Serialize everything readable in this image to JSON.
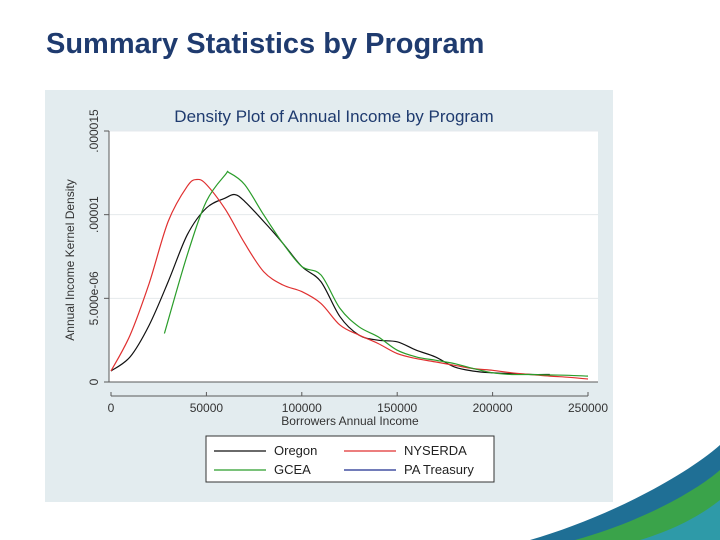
{
  "slide": {
    "title": "Summary Statistics by Program"
  },
  "colors": {
    "title": "#1f3b6f",
    "panel_bg": "#e3ecef",
    "plot_bg": "#ffffff",
    "grid": "#e4e9ec",
    "axis": "#5a5a5a",
    "chart_title": "#1f3b6f",
    "decor_dark": "#1f6f95",
    "decor_green": "#3aa34a",
    "decor_teal": "#2e9aa8"
  },
  "chart_data": {
    "type": "line",
    "title": "Density Plot of Annual Income by Program",
    "xlabel": "Borrowers Annual Income",
    "ylabel": "Annual Income Kernel Density",
    "xlim": [
      0,
      250000
    ],
    "ylim": [
      0,
      1.5e-05
    ],
    "x_ticks": [
      0,
      50000,
      100000,
      150000,
      200000,
      250000
    ],
    "x_tick_labels": [
      "0",
      "50000",
      "100000",
      "150000",
      "200000",
      "250000"
    ],
    "y_ticks": [
      0,
      5e-06,
      1e-05,
      1.5e-05
    ],
    "y_tick_labels": [
      "0",
      "5.000e-06",
      ".00001",
      ".000015"
    ],
    "legend_position": "bottom",
    "series": [
      {
        "name": "Oregon",
        "color": "#111111",
        "x": [
          0,
          10000,
          20000,
          30000,
          40000,
          50000,
          60000,
          65000,
          70000,
          80000,
          90000,
          100000,
          110000,
          120000,
          130000,
          140000,
          150000,
          160000,
          170000,
          180000,
          190000,
          200000,
          210000,
          220000,
          230000
        ],
        "y": [
          6.6e-07,
          1.5e-06,
          3.4e-06,
          6e-06,
          8.8e-06,
          1.04e-05,
          1.1e-05,
          1.12e-05,
          1.08e-05,
          9.6e-06,
          8.3e-06,
          6.9e-06,
          6e-06,
          3.9e-06,
          2.8e-06,
          2.5e-06,
          2.4e-06,
          1.9e-06,
          1.5e-06,
          9e-07,
          6.5e-07,
          5.5e-07,
          5e-07,
          4.5e-07,
          4.5e-07
        ]
      },
      {
        "name": "NYSERDA",
        "color": "#e03030",
        "x": [
          0,
          10000,
          20000,
          30000,
          40000,
          45000,
          50000,
          60000,
          70000,
          80000,
          90000,
          100000,
          110000,
          120000,
          130000,
          140000,
          150000,
          160000,
          170000,
          180000,
          190000,
          200000,
          210000,
          220000,
          230000,
          240000,
          250000
        ],
        "y": [
          6.6e-07,
          2.8e-06,
          5.9e-06,
          9.6e-06,
          1.17e-05,
          1.21e-05,
          1.18e-05,
          1.03e-05,
          8.3e-06,
          6.6e-06,
          5.8e-06,
          5.4e-06,
          4.7e-06,
          3.4e-06,
          2.8e-06,
          2.3e-06,
          1.7e-06,
          1.4e-06,
          1.2e-06,
          1e-06,
          8e-07,
          7e-07,
          5.5e-07,
          4.5e-07,
          3.5e-07,
          2.8e-07,
          1.8e-07
        ]
      },
      {
        "name": "GCEA",
        "color": "#2a9d2a",
        "x": [
          28000,
          40000,
          50000,
          60000,
          62000,
          70000,
          80000,
          90000,
          100000,
          110000,
          120000,
          130000,
          140000,
          150000,
          160000,
          170000,
          180000,
          190000,
          200000,
          210000,
          220000,
          230000,
          240000,
          250000
        ],
        "y": [
          2.9e-06,
          7.6e-06,
          1.08e-05,
          1.24e-05,
          1.25e-05,
          1.18e-05,
          1e-05,
          8.3e-06,
          6.9e-06,
          6.4e-06,
          4.4e-06,
          3.3e-06,
          2.7e-06,
          1.9e-06,
          1.5e-06,
          1.3e-06,
          1.1e-06,
          8e-07,
          5.5e-07,
          4.5e-07,
          4.5e-07,
          4.2e-07,
          4e-07,
          3.5e-07
        ]
      },
      {
        "name": "PA Treasury",
        "color": "#1f2f8f",
        "x": [],
        "y": []
      }
    ]
  }
}
